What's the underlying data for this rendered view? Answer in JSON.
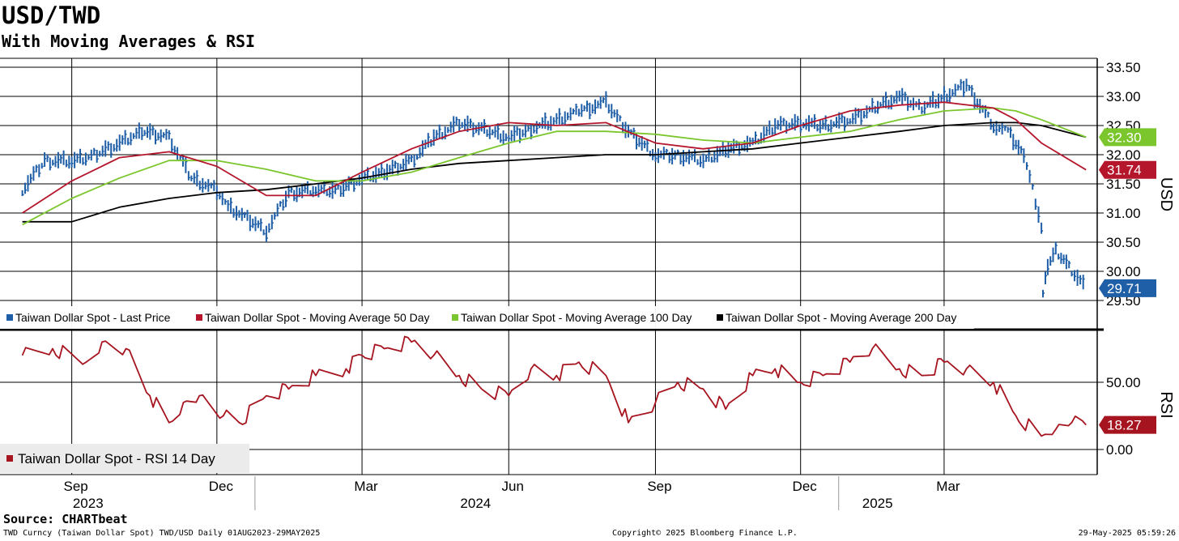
{
  "header": {
    "title": "USD/TWD",
    "subtitle": "With Moving Averages & RSI",
    "source": "Source: CHARTbeat"
  },
  "footer": {
    "left": "TWD Curncy (Taiwan Dollar Spot) TWD/USD  Daily 01AUG2023-29MAY2025",
    "center": "Copyright© 2025 Bloomberg Finance L.P.",
    "right": "29-May-2025 05:59:26"
  },
  "colors": {
    "price": "#1f5fa8",
    "ma50": "#b5162c",
    "ma100": "#7ac62c",
    "ma200": "#000000",
    "rsi": "#a6141f",
    "grid": "#000000"
  },
  "chart_data": [
    {
      "type": "line",
      "panel": "price",
      "ylabel": "USD",
      "ylim": [
        29.4,
        33.75
      ],
      "y_ticks": [
        "33.50",
        "33.00",
        "32.50",
        "32.00",
        "31.50",
        "31.00",
        "30.50",
        "30.00",
        "29.50"
      ],
      "x_tick_labels": [
        "Sep",
        "Dec",
        "Mar",
        "Jun",
        "Sep",
        "Dec",
        "Mar"
      ],
      "year_labels": [
        "2023",
        "2024",
        "2025"
      ],
      "grid": true,
      "legend_position": "bottom-left",
      "series": [
        {
          "name": "Taiwan Dollar Spot - Last Price",
          "style": "bars",
          "last_value": "29.71",
          "x": [
            "2023-08-01",
            "2023-08-15",
            "2023-09-01",
            "2023-09-15",
            "2023-10-01",
            "2023-10-15",
            "2023-11-01",
            "2023-11-15",
            "2023-12-01",
            "2023-12-08",
            "2023-12-15",
            "2024-01-01",
            "2024-01-15",
            "2024-02-01",
            "2024-02-15",
            "2024-03-01",
            "2024-03-15",
            "2024-04-01",
            "2024-04-15",
            "2024-05-01",
            "2024-05-15",
            "2024-06-01",
            "2024-06-15",
            "2024-07-01",
            "2024-07-15",
            "2024-08-01",
            "2024-08-15",
            "2024-09-01",
            "2024-09-15",
            "2024-10-01",
            "2024-10-15",
            "2024-11-01",
            "2024-11-15",
            "2024-12-01",
            "2024-12-15",
            "2025-01-01",
            "2025-01-15",
            "2025-02-01",
            "2025-02-15",
            "2025-03-01",
            "2025-03-15",
            "2025-04-01",
            "2025-04-10",
            "2025-04-20",
            "2025-05-01",
            "2025-05-02",
            "2025-05-05",
            "2025-05-10",
            "2025-05-15",
            "2025-05-20",
            "2025-05-29"
          ],
          "values": [
            31.4,
            31.9,
            31.9,
            32.0,
            32.2,
            32.4,
            32.3,
            31.6,
            31.4,
            31.1,
            31.0,
            30.7,
            31.35,
            31.4,
            31.4,
            31.6,
            31.7,
            31.9,
            32.3,
            32.55,
            32.45,
            32.3,
            32.45,
            32.6,
            32.75,
            32.9,
            32.4,
            32.0,
            32.0,
            31.9,
            32.1,
            32.2,
            32.5,
            32.55,
            32.5,
            32.6,
            32.8,
            33.0,
            32.8,
            33.0,
            33.2,
            32.5,
            32.4,
            32.0,
            30.8,
            29.6,
            30.1,
            30.35,
            30.2,
            30.0,
            29.71
          ]
        },
        {
          "name": "Taiwan Dollar Spot - Moving Average 50 Day",
          "style": "line",
          "last_value": "31.74",
          "x": [
            "2023-08-01",
            "2023-09-01",
            "2023-10-01",
            "2023-11-01",
            "2023-12-01",
            "2024-01-01",
            "2024-02-01",
            "2024-03-01",
            "2024-04-01",
            "2024-05-01",
            "2024-06-01",
            "2024-07-01",
            "2024-08-01",
            "2024-09-01",
            "2024-10-01",
            "2024-11-01",
            "2024-12-01",
            "2025-01-01",
            "2025-02-01",
            "2025-03-01",
            "2025-04-01",
            "2025-04-15",
            "2025-05-01",
            "2025-05-29"
          ],
          "values": [
            31.0,
            31.55,
            31.95,
            32.05,
            31.8,
            31.3,
            31.3,
            31.7,
            32.1,
            32.4,
            32.55,
            32.5,
            32.55,
            32.2,
            32.1,
            32.2,
            32.5,
            32.75,
            32.85,
            32.9,
            32.8,
            32.6,
            32.2,
            31.74
          ]
        },
        {
          "name": "Taiwan Dollar Spot - Moving Average 100 Day",
          "style": "line",
          "last_value": "32.30",
          "x": [
            "2023-08-01",
            "2023-09-01",
            "2023-10-01",
            "2023-11-01",
            "2023-12-01",
            "2024-01-01",
            "2024-02-01",
            "2024-03-01",
            "2024-04-01",
            "2024-05-01",
            "2024-06-01",
            "2024-07-01",
            "2024-08-01",
            "2024-09-01",
            "2024-10-01",
            "2024-11-01",
            "2024-12-01",
            "2025-01-01",
            "2025-02-01",
            "2025-03-01",
            "2025-04-01",
            "2025-04-15",
            "2025-05-01",
            "2025-05-29"
          ],
          "values": [
            30.8,
            31.25,
            31.6,
            31.9,
            31.9,
            31.75,
            31.55,
            31.55,
            31.7,
            31.95,
            32.2,
            32.4,
            32.4,
            32.35,
            32.25,
            32.2,
            32.3,
            32.4,
            32.6,
            32.75,
            32.8,
            32.75,
            32.6,
            32.3
          ]
        },
        {
          "name": "Taiwan Dollar Spot - Moving Average 200 Day",
          "style": "line",
          "x": [
            "2023-08-01",
            "2023-09-01",
            "2023-10-01",
            "2023-11-01",
            "2023-12-01",
            "2024-01-01",
            "2024-02-01",
            "2024-03-01",
            "2024-04-01",
            "2024-05-01",
            "2024-06-01",
            "2024-07-01",
            "2024-08-01",
            "2024-09-01",
            "2024-10-01",
            "2024-11-01",
            "2024-12-01",
            "2025-01-01",
            "2025-02-01",
            "2025-03-01",
            "2025-04-01",
            "2025-04-15",
            "2025-05-01",
            "2025-05-29"
          ],
          "values": [
            30.85,
            30.85,
            31.1,
            31.25,
            31.35,
            31.4,
            31.5,
            31.6,
            31.75,
            31.85,
            31.9,
            31.95,
            32.0,
            32.0,
            32.05,
            32.1,
            32.2,
            32.3,
            32.4,
            32.5,
            32.55,
            32.55,
            32.5,
            32.3
          ]
        }
      ]
    },
    {
      "type": "line",
      "panel": "rsi",
      "ylabel": "RSI",
      "ylim": [
        -10,
        95
      ],
      "y_ticks": [
        "50.00",
        "0.00"
      ],
      "legend_position": "bottom-left",
      "series": [
        {
          "name": "Taiwan Dollar Spot - RSI 14 Day",
          "last_value": "18.27",
          "x": [
            "2023-08-01",
            "2023-08-20",
            "2023-09-10",
            "2023-09-20",
            "2023-10-05",
            "2023-10-20",
            "2023-11-01",
            "2023-11-10",
            "2023-11-20",
            "2023-12-05",
            "2023-12-15",
            "2024-01-01",
            "2024-01-15",
            "2024-02-01",
            "2024-02-20",
            "2024-03-01",
            "2024-03-15",
            "2024-04-01",
            "2024-04-15",
            "2024-05-01",
            "2024-05-15",
            "2024-06-01",
            "2024-06-15",
            "2024-07-01",
            "2024-07-15",
            "2024-08-01",
            "2024-08-15",
            "2024-09-01",
            "2024-09-15",
            "2024-10-01",
            "2024-10-15",
            "2024-11-01",
            "2024-11-15",
            "2024-12-01",
            "2024-12-15",
            "2025-01-01",
            "2025-01-15",
            "2025-02-01",
            "2025-02-15",
            "2025-03-01",
            "2025-03-15",
            "2025-04-01",
            "2025-04-15",
            "2025-05-01",
            "2025-05-10",
            "2025-05-20",
            "2025-05-29"
          ],
          "values": [
            70,
            75,
            65,
            80,
            75,
            40,
            20,
            35,
            40,
            25,
            20,
            40,
            45,
            55,
            60,
            70,
            75,
            80,
            70,
            55,
            45,
            40,
            60,
            55,
            65,
            55,
            20,
            35,
            50,
            45,
            30,
            55,
            60,
            50,
            55,
            65,
            75,
            60,
            55,
            65,
            60,
            50,
            25,
            10,
            15,
            20,
            18.27
          ]
        }
      ]
    }
  ]
}
